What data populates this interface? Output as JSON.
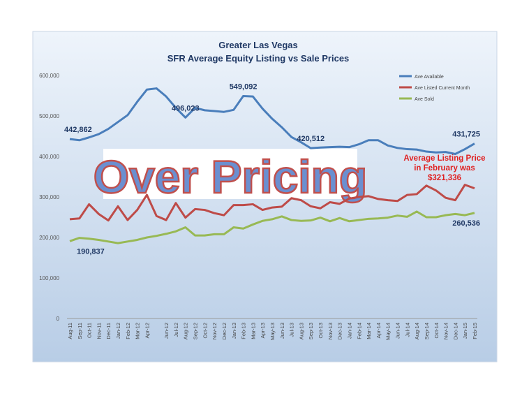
{
  "chart_data": {
    "type": "line",
    "title": "Greater Las Vegas",
    "subtitle": "SFR Average Equity Listing vs Sale Prices",
    "categories": [
      "Aug-11",
      "Sep-11",
      "Oct-11",
      "Nov-11",
      "Dec-11",
      "Jan-12",
      "Feb-12",
      "Mar-12",
      "Apr-12",
      null,
      "Jun-12",
      "Jul-12",
      "Aug-12",
      "Sep-12",
      "Oct-12",
      "Nov-12",
      "Dec-12",
      "Jan-13",
      "Feb-13",
      "Mar-13",
      "Apr-13",
      "May-13",
      "Jun-13",
      "Jul-13",
      "Aug-13",
      "Sep-13",
      "Oct-13",
      "Nov-13",
      "Dec-13",
      "Jan-14",
      "Feb-14",
      "Mar-14",
      "Apr-14",
      "May-14",
      "Jun-14",
      "Jul-14",
      "Aug-14",
      "Sep-14",
      "Oct-14",
      "Nov-14",
      "Dec-14",
      "Jan-15",
      "Feb-15"
    ],
    "series": [
      {
        "name": "Ave Available",
        "color": "#4a7ebb",
        "values": [
          442862,
          440000,
          447000,
          455000,
          468000,
          485000,
          502000,
          535000,
          565000,
          568000,
          548000,
          520000,
          496023,
          520000,
          514000,
          512000,
          510000,
          515000,
          549092,
          548000,
          518000,
          493000,
          472000,
          448000,
          435000,
          420512,
          422000,
          423000,
          424000,
          423000,
          430000,
          440000,
          440000,
          427000,
          421000,
          418000,
          417000,
          412000,
          410000,
          411000,
          406000,
          418000,
          431725
        ],
        "value_labels": [
          "442,862",
          null,
          null,
          null,
          null,
          null,
          null,
          null,
          null,
          null,
          null,
          null,
          "496,023",
          null,
          null,
          null,
          null,
          null,
          "549,092",
          null,
          null,
          null,
          null,
          null,
          null,
          "420,512",
          null,
          null,
          null,
          null,
          null,
          null,
          null,
          null,
          null,
          null,
          null,
          null,
          null,
          null,
          null,
          null,
          "431,725"
        ]
      },
      {
        "name": "Ave Listed Current Month",
        "color": "#be4b48",
        "values": [
          245000,
          247000,
          282000,
          258000,
          242000,
          277000,
          243000,
          268000,
          305000,
          253000,
          243000,
          285000,
          249000,
          270000,
          268000,
          260000,
          255000,
          280000,
          280000,
          282000,
          268000,
          274000,
          276000,
          297000,
          292000,
          277000,
          272000,
          287000,
          283000,
          296000,
          300000,
          302000,
          295000,
          292000,
          290000,
          305000,
          307000,
          328000,
          316000,
          298000,
          292000,
          330000,
          321336
        ]
      },
      {
        "name": "Ave Sold",
        "color": "#98b954",
        "values": [
          190837,
          199000,
          197000,
          194000,
          190000,
          186000,
          190000,
          194000,
          200000,
          204000,
          209000,
          215000,
          225000,
          205000,
          205000,
          208000,
          208000,
          225000,
          222000,
          232000,
          241000,
          245000,
          252000,
          243000,
          241000,
          242000,
          249000,
          240000,
          248000,
          240000,
          243000,
          246000,
          247000,
          249000,
          254000,
          251000,
          264000,
          250000,
          250000,
          255000,
          258000,
          255000,
          260536
        ],
        "value_labels": [
          "190,837",
          null,
          null,
          null,
          null,
          null,
          null,
          null,
          null,
          null,
          null,
          null,
          null,
          null,
          null,
          null,
          null,
          null,
          null,
          null,
          null,
          null,
          null,
          null,
          null,
          null,
          null,
          null,
          null,
          null,
          null,
          null,
          null,
          null,
          null,
          null,
          null,
          null,
          null,
          null,
          null,
          null,
          "260,536"
        ]
      }
    ],
    "ylim": [
      0,
      600000
    ],
    "yticks": [
      0,
      {
        "value": 100000,
        "label": "100,000"
      },
      {
        "value": 200000,
        "label": "200,000"
      },
      {
        "value": 300000,
        "label": "300,000"
      },
      {
        "value": 400000,
        "label": "400,000"
      },
      {
        "value": 500000,
        "label": "500,000"
      },
      {
        "value": 600000,
        "label": "600,000"
      }
    ],
    "grid": false,
    "legend": "top-right",
    "annotations": [
      "Average Listing Price",
      "in February was",
      "$321,336"
    ],
    "banner": "Over Pricing"
  }
}
